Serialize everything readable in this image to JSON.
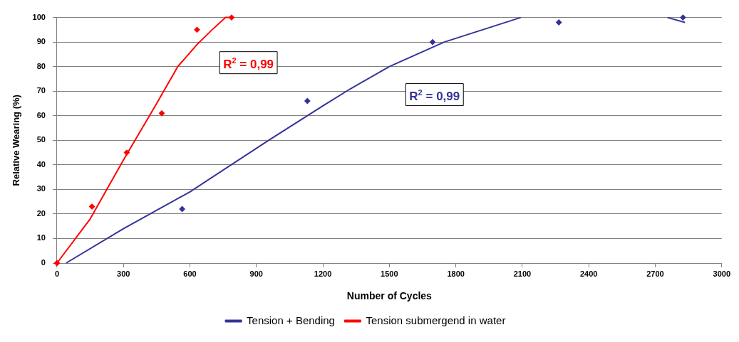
{
  "chart_data": {
    "type": "scatter",
    "xlabel": "Number of Cycles",
    "ylabel": "Relative Wearing (%)",
    "xlim": [
      0,
      3000
    ],
    "xticks": [
      0,
      300,
      600,
      900,
      1200,
      1500,
      1800,
      2100,
      2400,
      2700,
      3000
    ],
    "ylim": [
      0,
      100
    ],
    "yticks": [
      0,
      10,
      20,
      30,
      40,
      50,
      60,
      70,
      80,
      90,
      100
    ],
    "grid": "y",
    "legend": "bottom",
    "annotations": [
      "R$^{2}$ = 0,99",
      "R$^{2}$ = 0,99"
    ],
    "series": [
      {
        "name": "Tension + Bending",
        "type": "line",
        "color": "#333399",
        "marker": "none",
        "line_style": "solid",
        "x": [
          41,
          300,
          600,
          955,
          1200,
          1325,
          1500,
          1748,
          2093,
          2400,
          2755,
          2834
        ],
        "values": [
          0,
          14,
          29,
          50,
          64,
          71,
          80,
          90,
          100,
          null,
          100,
          98
        ]
      },
      {
        "name": "Tension submergend in water",
        "type": "line",
        "color": "#ff0000",
        "marker": "none",
        "line_style": "solid",
        "x": [
          0,
          150,
          300,
          450,
          545,
          632,
          700,
          761,
          780
        ],
        "values": [
          0,
          18,
          42,
          65,
          80,
          89,
          95,
          100,
          100
        ]
      },
      {
        "type": "scatter",
        "color": "#333399",
        "marker": "diamond",
        "x": [
          565,
          1130,
          1695,
          2265,
          2825
        ],
        "values": [
          22,
          66,
          90,
          98,
          100
        ]
      },
      {
        "type": "scatter",
        "color": "#ff0000",
        "marker": "diamond",
        "x": [
          0,
          158,
          315,
          473,
          632,
          788
        ],
        "values": [
          0,
          23,
          45,
          61,
          95,
          100
        ]
      }
    ]
  }
}
